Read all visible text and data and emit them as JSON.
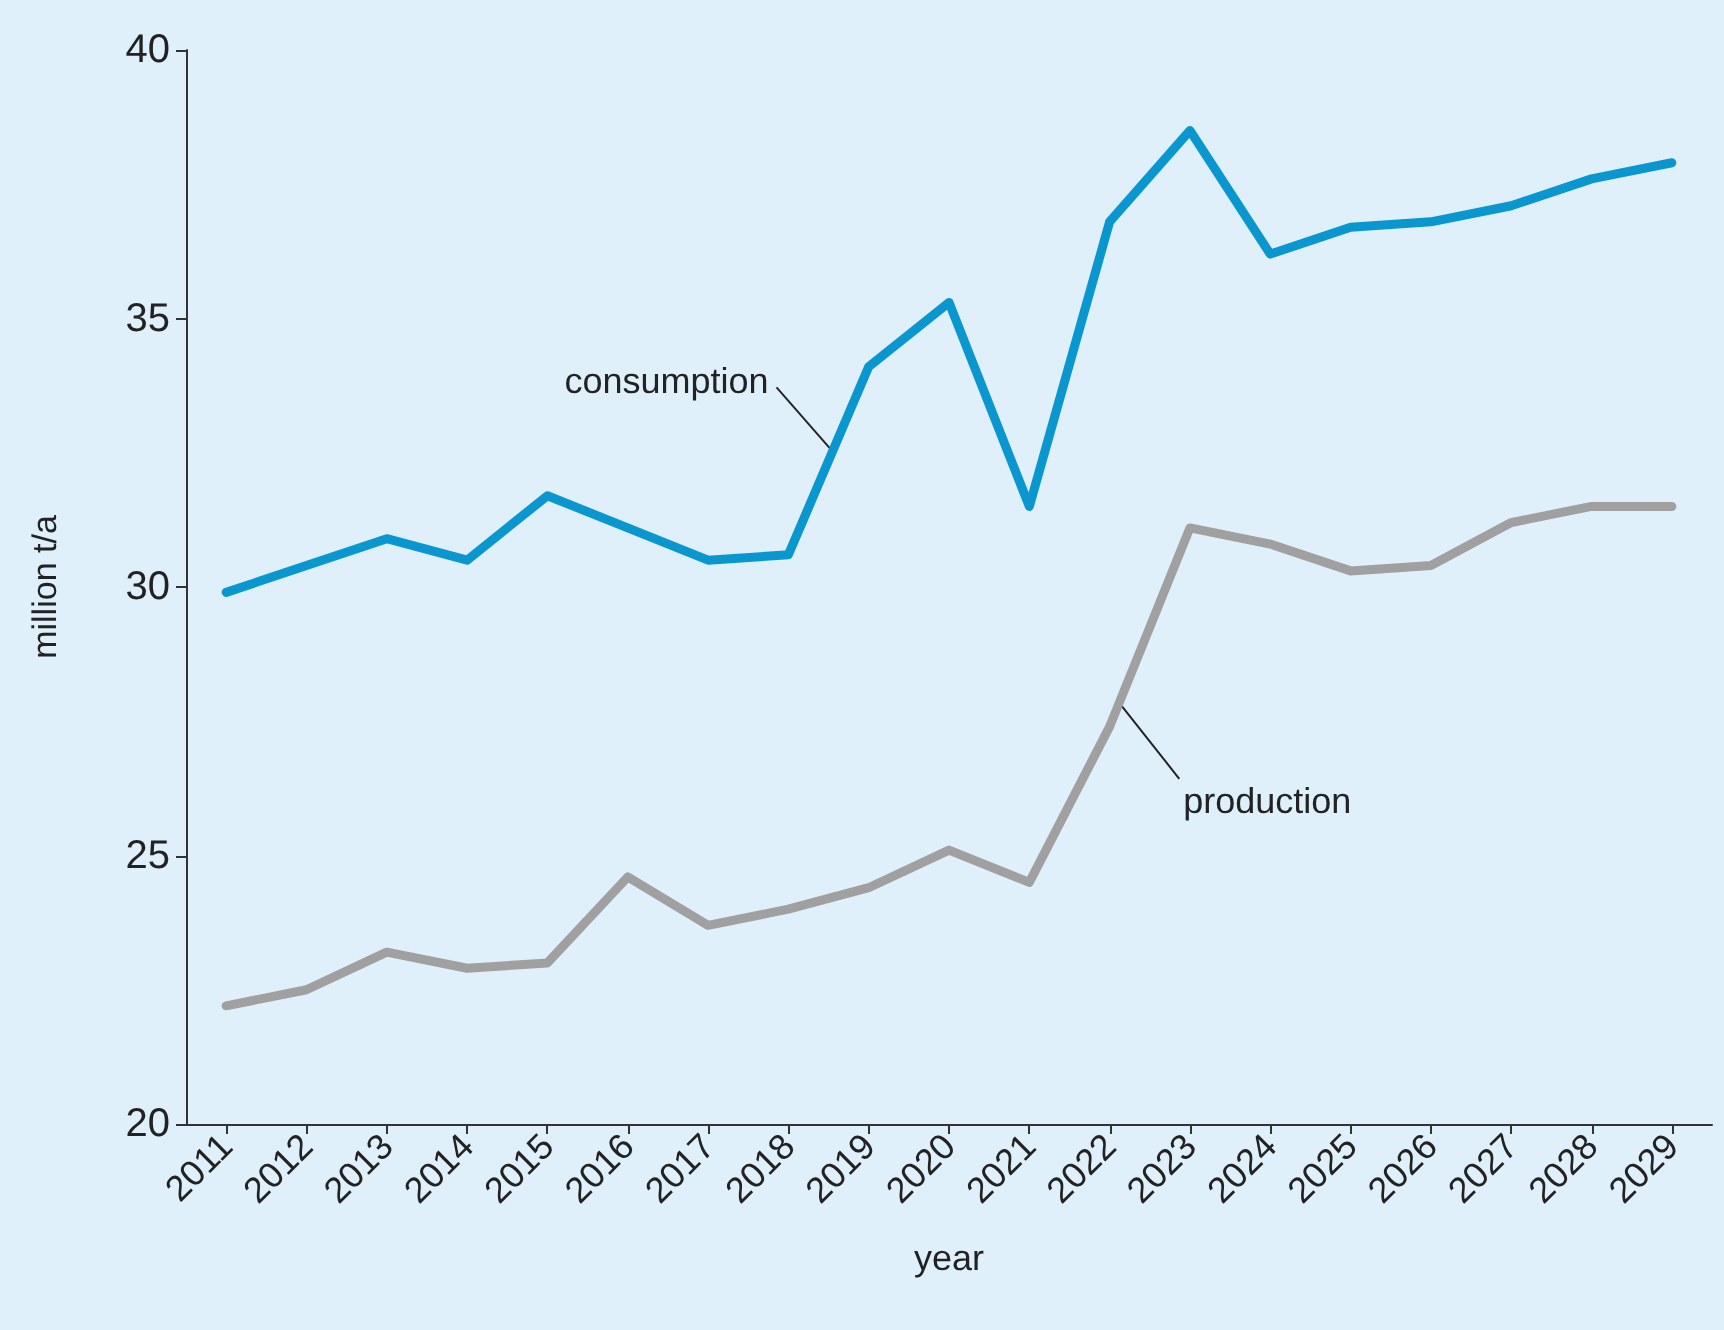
{
  "chart_data": {
    "type": "line",
    "xlabel": "year",
    "ylabel": "million t/a",
    "categories": [
      "2011",
      "2012",
      "2013",
      "2014",
      "2015",
      "2016",
      "2017",
      "2018",
      "2019",
      "2020",
      "2021",
      "2022",
      "2023",
      "2024",
      "2025",
      "2026",
      "2027",
      "2028",
      "2029"
    ],
    "series": [
      {
        "name": "consumption",
        "color": "#0a96cf",
        "values": [
          29.9,
          30.4,
          30.9,
          30.5,
          31.7,
          31.1,
          30.5,
          30.6,
          34.1,
          35.3,
          31.5,
          36.8,
          38.5,
          36.2,
          36.7,
          36.8,
          37.1,
          37.6,
          37.9
        ]
      },
      {
        "name": "production",
        "color": "#a0a0a0",
        "values": [
          22.2,
          22.5,
          23.2,
          22.9,
          23.0,
          24.6,
          23.7,
          24.0,
          24.4,
          25.1,
          24.5,
          27.4,
          31.1,
          30.8,
          30.3,
          30.4,
          31.2,
          31.5,
          31.5
        ]
      }
    ],
    "ylim": [
      20,
      40
    ],
    "yticks": [
      20,
      25,
      30,
      35,
      40
    ],
    "grid": false,
    "legend": false,
    "marker": "none",
    "line_style": "solid"
  }
}
